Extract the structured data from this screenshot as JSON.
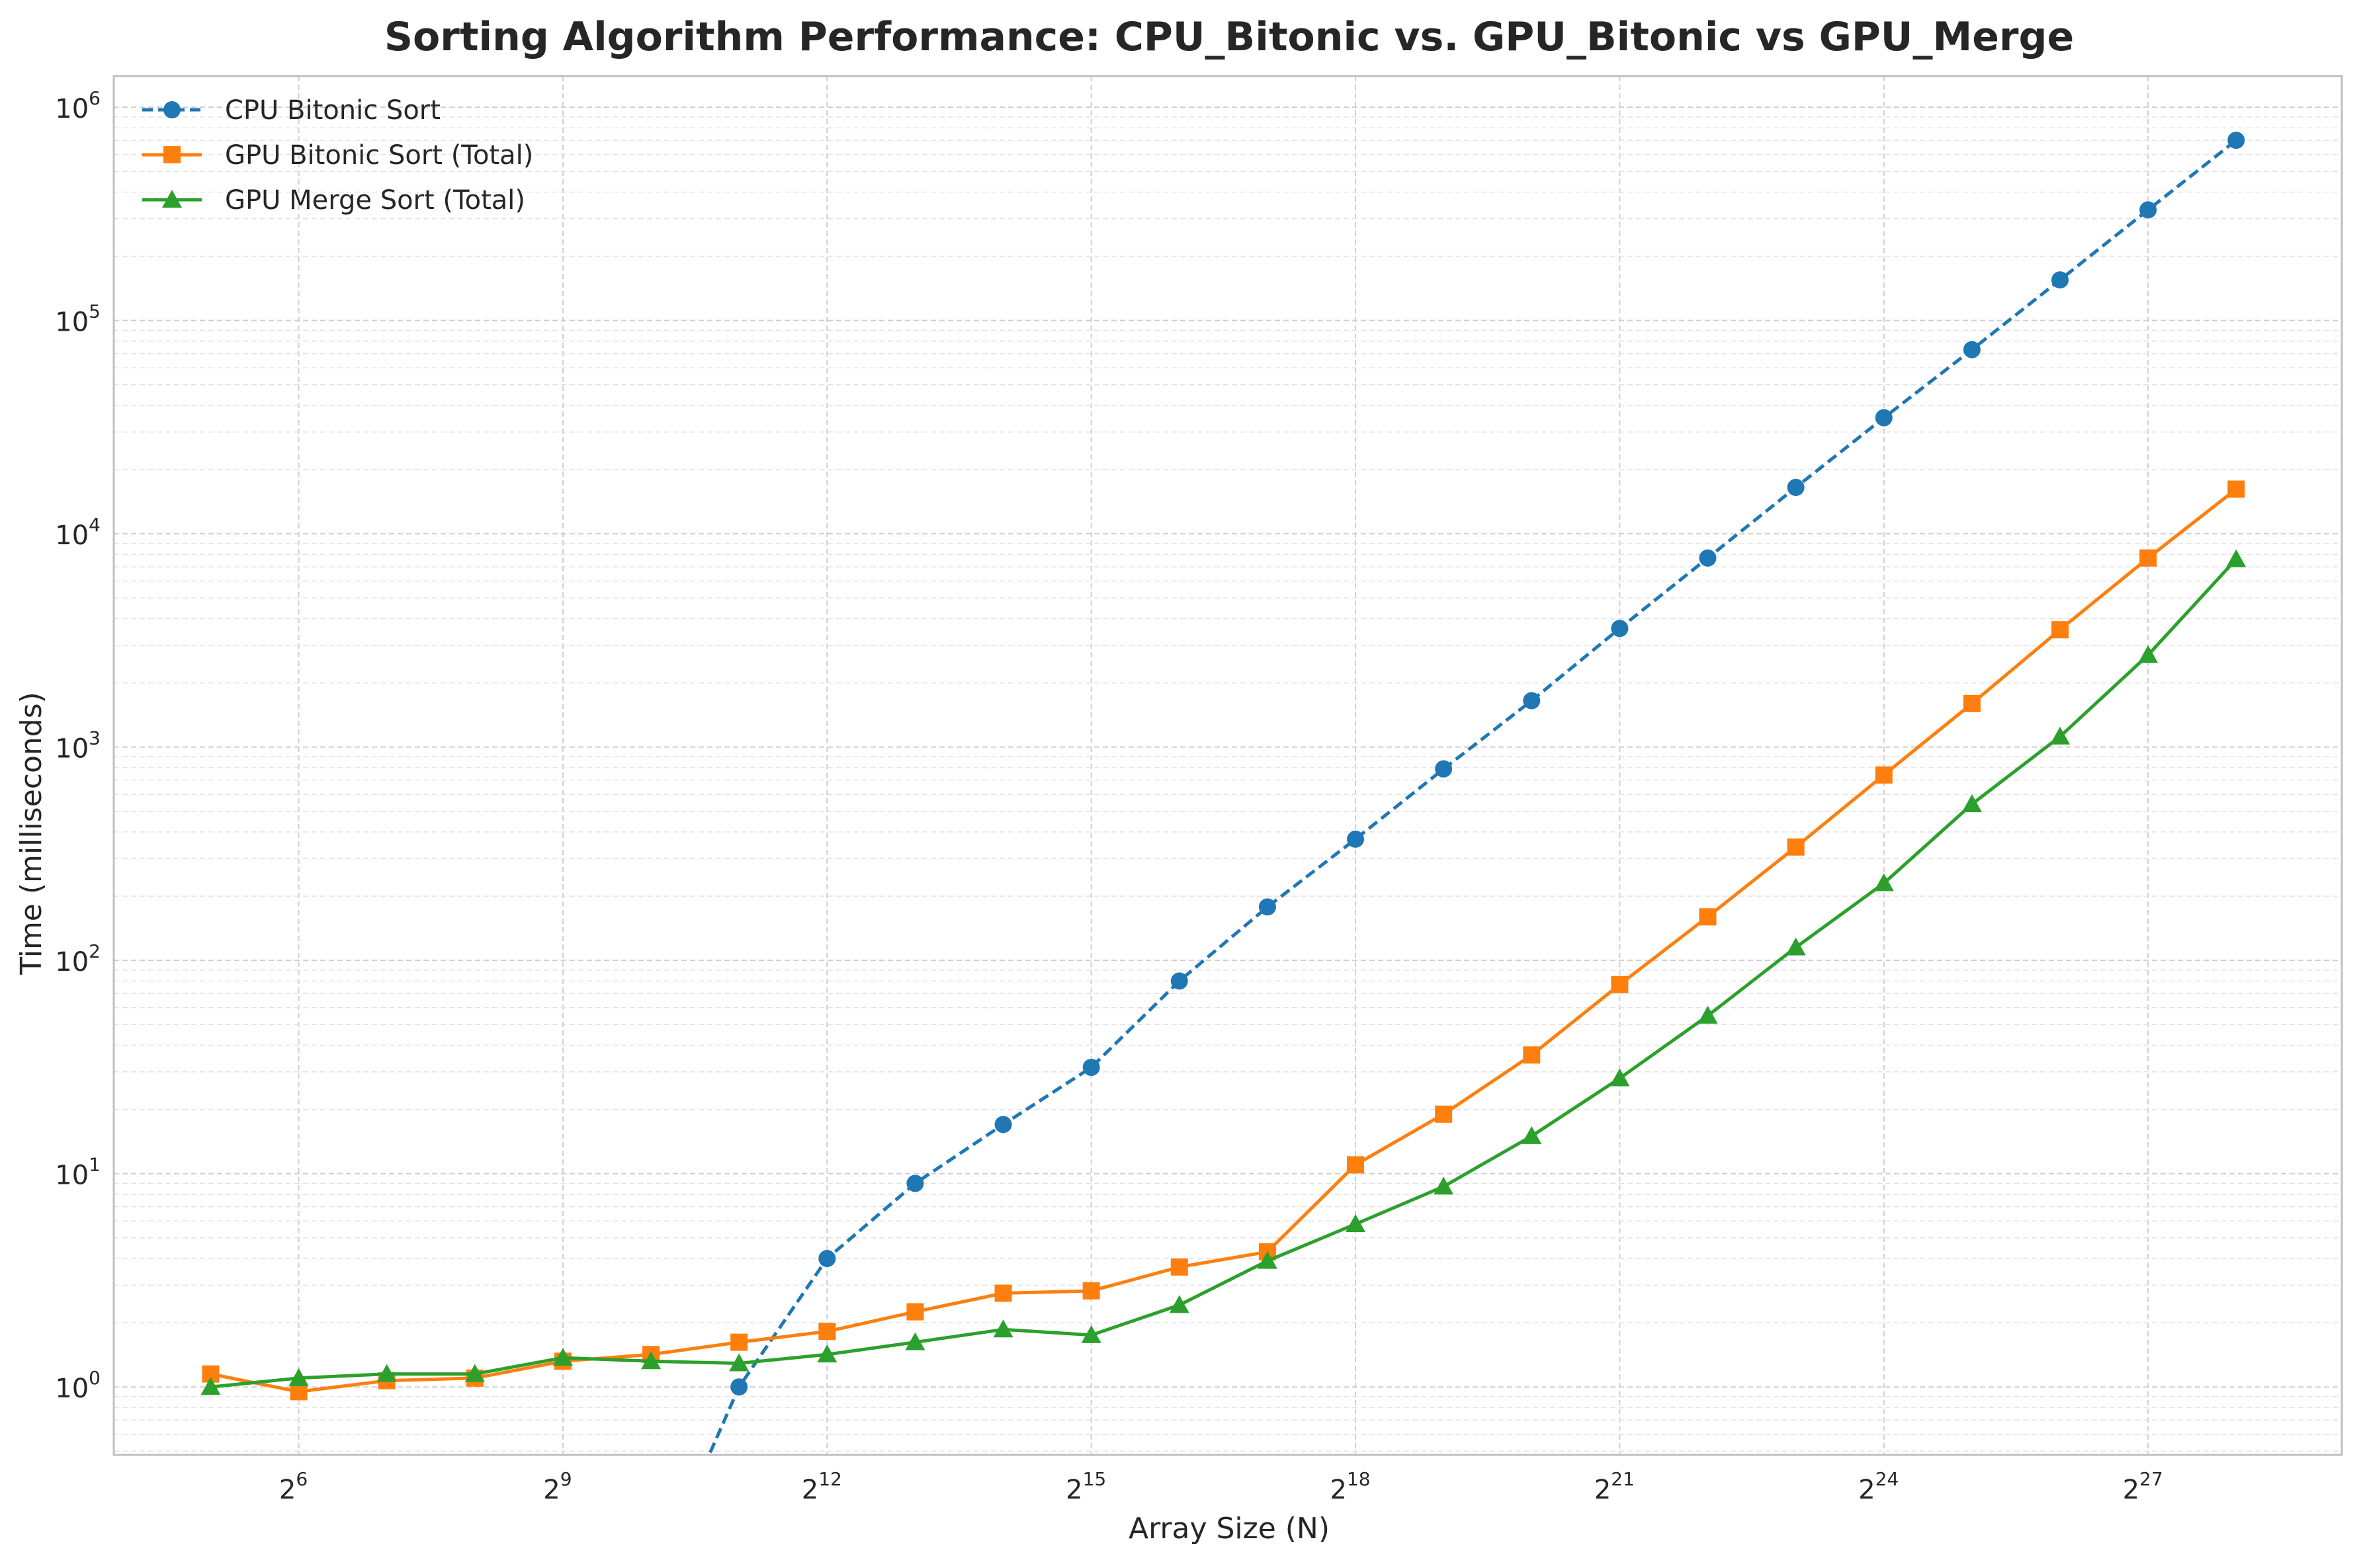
{
  "chart_data": {
    "type": "line",
    "title": "Sorting Algorithm Performance: CPU_Bitonic vs. GPU_Bitonic vs GPU_Merge",
    "xlabel": "Array Size (N)",
    "ylabel": "Time (milliseconds)",
    "x_scale": "log2",
    "y_scale": "log10",
    "x_exponents": [
      5,
      6,
      7,
      8,
      9,
      10,
      11,
      12,
      13,
      14,
      15,
      16,
      17,
      18,
      19,
      20,
      21,
      22,
      23,
      24,
      25,
      26,
      27,
      28
    ],
    "xlim_exponent": [
      3.9,
      29.2
    ],
    "ylim": [
      0.48,
      1400000
    ],
    "x_ticks": [
      {
        "base": "2",
        "exp": "6",
        "value_exp": 6
      },
      {
        "base": "2",
        "exp": "9",
        "value_exp": 9
      },
      {
        "base": "2",
        "exp": "12",
        "value_exp": 12
      },
      {
        "base": "2",
        "exp": "15",
        "value_exp": 15
      },
      {
        "base": "2",
        "exp": "18",
        "value_exp": 18
      },
      {
        "base": "2",
        "exp": "21",
        "value_exp": 21
      },
      {
        "base": "2",
        "exp": "24",
        "value_exp": 24
      },
      {
        "base": "2",
        "exp": "27",
        "value_exp": 27
      }
    ],
    "y_ticks": [
      {
        "base": "10",
        "exp": "0",
        "value_exp": 0
      },
      {
        "base": "10",
        "exp": "1",
        "value_exp": 1
      },
      {
        "base": "10",
        "exp": "2",
        "value_exp": 2
      },
      {
        "base": "10",
        "exp": "3",
        "value_exp": 3
      },
      {
        "base": "10",
        "exp": "4",
        "value_exp": 4
      },
      {
        "base": "10",
        "exp": "5",
        "value_exp": 5
      },
      {
        "base": "10",
        "exp": "6",
        "value_exp": 6
      }
    ],
    "grid": true,
    "legend_position": "top-left",
    "series": [
      {
        "name": "CPU Bitonic Sort",
        "color": "#1f77b4",
        "marker": "circle",
        "linestyle": "dashed",
        "values": [
          0,
          0,
          0,
          0,
          0,
          0,
          1.0,
          4.0,
          9.0,
          17.0,
          31.5,
          80.0,
          178.0,
          370.0,
          790.0,
          1650.0,
          3600.0,
          7700.0,
          16500.0,
          35000.0,
          73000.0,
          155000.0,
          330000.0,
          700000.0
        ]
      },
      {
        "name": "GPU Bitonic Sort (Total)",
        "color": "#ff7f0e",
        "marker": "square",
        "linestyle": "solid",
        "values": [
          1.15,
          0.95,
          1.07,
          1.1,
          1.32,
          1.42,
          1.62,
          1.82,
          2.25,
          2.75,
          2.82,
          3.65,
          4.3,
          11.0,
          19.0,
          36.0,
          77.0,
          160.0,
          340.0,
          740.0,
          1600.0,
          3550.0,
          7700.0,
          16200.0
        ]
      },
      {
        "name": "GPU Merge Sort (Total)",
        "color": "#2ca02c",
        "marker": "triangle",
        "linestyle": "solid",
        "values": [
          1.0,
          1.1,
          1.15,
          1.15,
          1.37,
          1.32,
          1.29,
          1.42,
          1.62,
          1.86,
          1.75,
          2.42,
          3.9,
          5.8,
          8.7,
          15.0,
          28.0,
          55.0,
          115.0,
          230.0,
          540.0,
          1120.0,
          2700.0,
          7600.0
        ]
      }
    ]
  }
}
